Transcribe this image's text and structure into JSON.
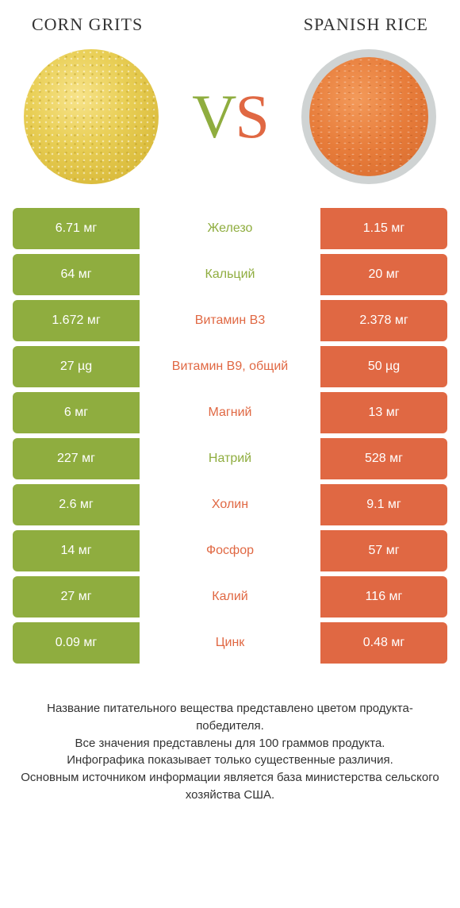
{
  "colors": {
    "left": "#8fad3f",
    "right": "#e06843",
    "left_label": "#8fad3f",
    "right_label": "#e06843"
  },
  "header": {
    "left_title": "Corn grits",
    "right_title": "Spanish rice"
  },
  "vs": {
    "v": "V",
    "s": "S"
  },
  "rows": [
    {
      "left": "6.71 мг",
      "label": "Железо",
      "right": "1.15 мг",
      "winner": "left"
    },
    {
      "left": "64 мг",
      "label": "Кальций",
      "right": "20 мг",
      "winner": "left"
    },
    {
      "left": "1.672 мг",
      "label": "Витамин B3",
      "right": "2.378 мг",
      "winner": "right"
    },
    {
      "left": "27 µg",
      "label": "Витамин B9, общий",
      "right": "50 µg",
      "winner": "right"
    },
    {
      "left": "6 мг",
      "label": "Магний",
      "right": "13 мг",
      "winner": "right"
    },
    {
      "left": "227 мг",
      "label": "Натрий",
      "right": "528 мг",
      "winner": "left"
    },
    {
      "left": "2.6 мг",
      "label": "Холин",
      "right": "9.1 мг",
      "winner": "right"
    },
    {
      "left": "14 мг",
      "label": "Фосфор",
      "right": "57 мг",
      "winner": "right"
    },
    {
      "left": "27 мг",
      "label": "Калий",
      "right": "116 мг",
      "winner": "right"
    },
    {
      "left": "0.09 мг",
      "label": "Цинк",
      "right": "0.48 мг",
      "winner": "right"
    }
  ],
  "footer": {
    "line1": "Название питательного вещества представлено цветом продукта-победителя.",
    "line2": "Все значения представлены для 100 граммов продукта.",
    "line3": "Инфографика показывает только существенные различия.",
    "line4": "Основным источником информации является база министерства сельского хозяйства США."
  }
}
